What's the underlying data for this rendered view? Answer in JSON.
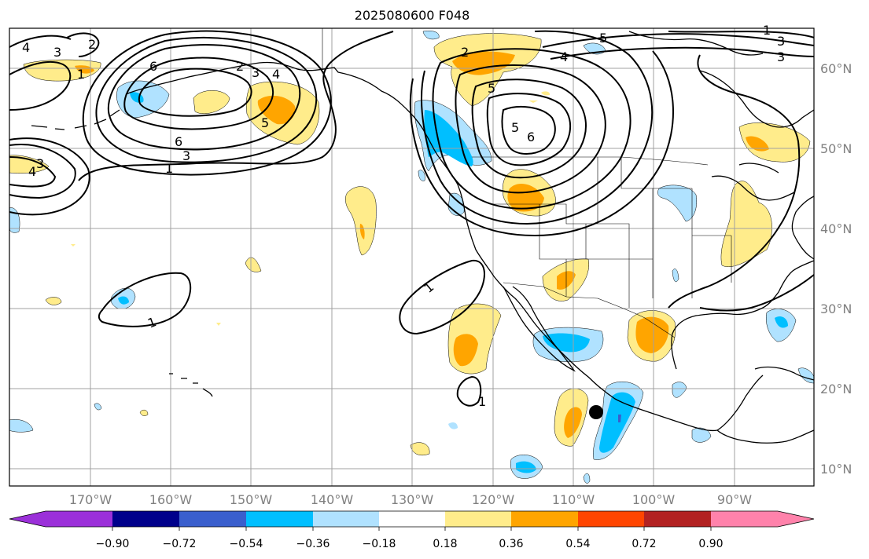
{
  "title": "2025080600 F048",
  "colors": {
    "neg_090": "#9b30d9",
    "neg_072": "#00008b",
    "neg_054": "#3a5fcd",
    "neg_036": "#00bfff",
    "neg_018": "#b0e2ff",
    "neutral": "#ffffff",
    "pos_018": "#ffec8b",
    "pos_036": "#ffa500",
    "pos_054": "#ff4500",
    "pos_072": "#b22222",
    "pos_090": "#ff82ab",
    "grid": "#a0a0a0",
    "contour": "#000000"
  },
  "latitude_labels": [
    "60°N",
    "50°N",
    "40°N",
    "30°N",
    "20°N",
    "10°N"
  ],
  "longitude_labels": [
    "170°W",
    "160°W",
    "150°W",
    "140°W",
    "130°W",
    "120°W",
    "110°W",
    "100°W",
    "90°W"
  ],
  "colorbar": {
    "tick_labels": [
      "−0.90",
      "−0.72",
      "−0.54",
      "−0.36",
      "−0.18",
      "0.18",
      "0.36",
      "0.54",
      "0.72",
      "0.90"
    ],
    "extend": "both"
  },
  "contour_labels": [
    {
      "text": "4"
    },
    {
      "text": "3"
    },
    {
      "text": "2"
    },
    {
      "text": "1"
    },
    {
      "text": "6"
    },
    {
      "text": "3"
    },
    {
      "text": "1"
    },
    {
      "text": "5"
    },
    {
      "text": "4"
    },
    {
      "text": "3"
    },
    {
      "text": "2"
    },
    {
      "text": "6"
    },
    {
      "text": "4"
    },
    {
      "text": "3"
    },
    {
      "text": "1"
    },
    {
      "text": "1"
    },
    {
      "text": "2"
    },
    {
      "text": "5"
    },
    {
      "text": "4"
    },
    {
      "text": "5"
    },
    {
      "text": "6"
    },
    {
      "text": "5"
    },
    {
      "text": "3"
    },
    {
      "text": "3"
    },
    {
      "text": "1"
    },
    {
      "text": "1"
    }
  ],
  "marker": {
    "type": "black-dot"
  }
}
